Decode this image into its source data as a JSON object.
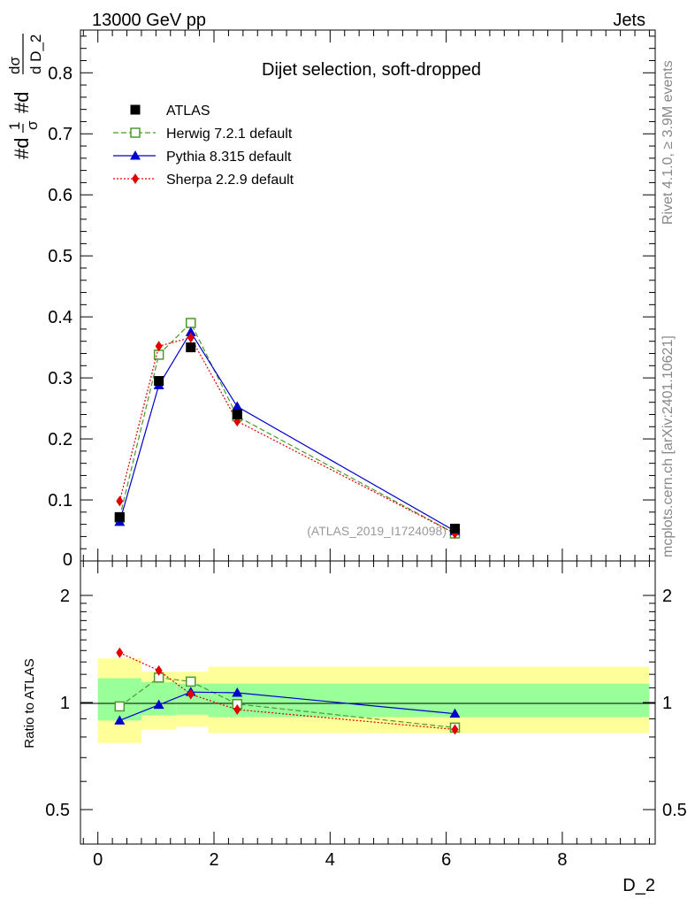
{
  "header": {
    "left": "13000 GeV pp",
    "right": "Jets"
  },
  "side_labels": {
    "rivet": "Rivet 4.1.0, ≥ 3.9M events",
    "mcplots": "mcplots.cern.ch [arXiv:2401.10621]"
  },
  "chart_data": [
    {
      "type": "line",
      "title": "Dijet selection, soft-dropped",
      "watermark": "(ATLAS_2019_I1724098)",
      "ylabel_parts": [
        "#d",
        "1",
        "σ",
        "#d",
        "dσ",
        "d D_2"
      ],
      "xlim": [
        -0.3,
        9.6
      ],
      "ylim": [
        0,
        0.87
      ],
      "yticks": [
        0.1,
        0.2,
        0.3,
        0.4,
        0.5,
        0.6,
        0.7,
        0.8
      ],
      "ytick_labels": [
        "0.1",
        "0.2",
        "0.3",
        "0.4",
        "0.5",
        "0.6",
        "0.7",
        "0.8"
      ],
      "ytick_zero_label": "0",
      "x": [
        0.375,
        1.05,
        1.6,
        2.4,
        6.15
      ],
      "series": [
        {
          "name": "ATLAS",
          "color": "#000000",
          "marker": "square",
          "line": "none",
          "values": [
            0.072,
            0.295,
            0.35,
            0.24,
            0.053
          ]
        },
        {
          "name": "Herwig 7.2.1 default",
          "color": "#4c9a2a",
          "marker": "open-square",
          "line": "dashed",
          "values": [
            0.071,
            0.338,
            0.39,
            0.237,
            0.045
          ]
        },
        {
          "name": "Pythia 8.315 default",
          "color": "#0000cc",
          "marker": "triangle",
          "line": "solid",
          "values": [
            0.064,
            0.288,
            0.375,
            0.253,
            0.049
          ]
        },
        {
          "name": "Sherpa 2.2.9 default",
          "color": "#e00000",
          "marker": "diamond",
          "line": "dotted",
          "values": [
            0.098,
            0.352,
            0.366,
            0.229,
            0.045
          ]
        }
      ]
    },
    {
      "type": "line",
      "ylabel": "Ratio to ATLAS",
      "xlabel": "D_2",
      "yscale": "log",
      "ylim": [
        0.4,
        2.5
      ],
      "yticks": [
        0.5,
        1,
        2
      ],
      "ytick_labels": [
        "0.5",
        "1",
        "2"
      ],
      "xticks": [
        0,
        2,
        4,
        6,
        8
      ],
      "xtick_labels": [
        "0",
        "2",
        "4",
        "6",
        "8"
      ],
      "x": [
        0.375,
        1.05,
        1.6,
        2.4,
        6.15
      ],
      "bands": {
        "edges": [
          0,
          0.75,
          1.35,
          1.9,
          9.5
        ],
        "stat_low": [
          0.89,
          0.92,
          0.925,
          0.91
        ],
        "stat_high": [
          1.17,
          1.14,
          1.13,
          1.13
        ],
        "total_low": [
          0.77,
          0.84,
          0.855,
          0.82
        ],
        "total_high": [
          1.33,
          1.22,
          1.22,
          1.26
        ]
      },
      "series": [
        {
          "name": "Herwig 7.2.1 default",
          "color": "#4c9a2a",
          "marker": "open-square",
          "line": "dashed",
          "values": [
            0.975,
            1.175,
            1.145,
            0.99,
            0.85
          ]
        },
        {
          "name": "Pythia 8.315 default",
          "color": "#0000cc",
          "marker": "triangle",
          "line": "solid",
          "values": [
            0.89,
            0.985,
            1.07,
            1.065,
            0.93
          ]
        },
        {
          "name": "Sherpa 2.2.9 default",
          "color": "#e00000",
          "marker": "diamond",
          "line": "dotted",
          "values": [
            1.38,
            1.23,
            1.055,
            0.955,
            0.84
          ]
        }
      ]
    }
  ]
}
